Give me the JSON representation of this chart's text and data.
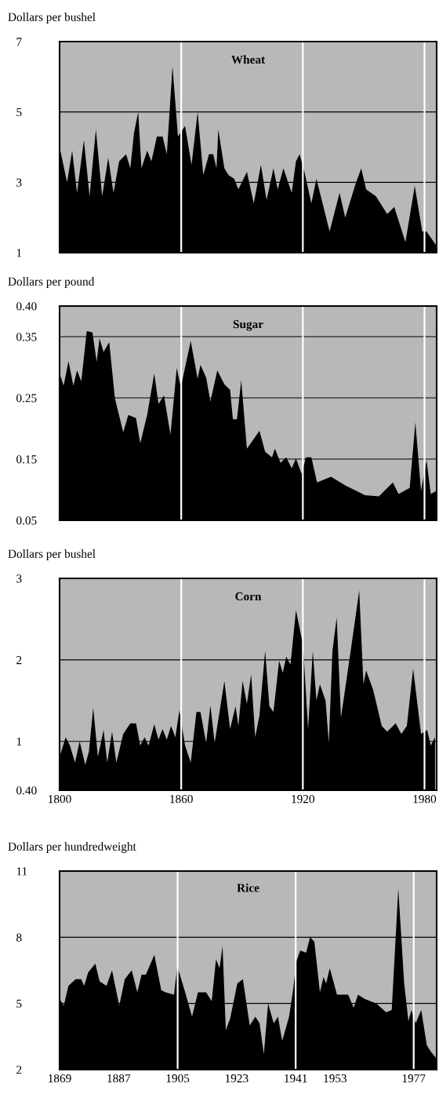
{
  "chart_data": [
    {
      "type": "area",
      "title": "Wheat",
      "ylabel": "Dollars per bushel",
      "xlim": [
        1800,
        1986
      ],
      "xticks": [
        1800,
        1860,
        1920,
        1980
      ],
      "ylim": [
        1,
        7
      ],
      "yticks": [
        1,
        3,
        5,
        7
      ],
      "grid": "y",
      "tick_labels": "y",
      "ref_lines": [
        {
          "axis": "x",
          "value": 1860,
          "color": "#ffffff"
        },
        {
          "axis": "x",
          "value": 1920,
          "color": "#ffffff"
        },
        {
          "axis": "x",
          "value": 1980,
          "color": "#ffffff"
        }
      ],
      "x": [
        1800,
        1803.7,
        1806.2,
        1808.6,
        1812,
        1814.8,
        1817.9,
        1821,
        1824,
        1826.6,
        1829.4,
        1832.8,
        1834.9,
        1836.7,
        1838.8,
        1840.4,
        1843.2,
        1845.3,
        1848,
        1850.8,
        1852.9,
        1855.7,
        1858.4,
        1861.9,
        1865.1,
        1868.1,
        1870.9,
        1873.7,
        1875.8,
        1877.4,
        1878.3,
        1881.3,
        1883.4,
        1886.1,
        1888.2,
        1892.4,
        1895.8,
        1899.3,
        1902.1,
        1905.5,
        1907.6,
        1910.4,
        1914.5,
        1916.6,
        1918.4,
        1920.8,
        1924.2,
        1926.7,
        1933.2,
        1938.1,
        1940.9,
        1945.7,
        1948.8,
        1951.2,
        1956.1,
        1961.6,
        1965.1,
        1970.6,
        1975.2,
        1978.9,
        1981,
        1985.9
      ],
      "series": [
        {
          "color": "#000000",
          "values": [
            4.0,
            3.0,
            3.9,
            2.7,
            4.2,
            2.6,
            4.5,
            2.6,
            3.7,
            2.7,
            3.6,
            3.8,
            3.4,
            4.4,
            5.0,
            3.4,
            3.9,
            3.6,
            4.3,
            4.3,
            3.8,
            6.3,
            4.3,
            4.6,
            3.5,
            5.0,
            3.2,
            3.8,
            3.8,
            3.4,
            4.5,
            3.4,
            3.2,
            3.1,
            2.8,
            3.3,
            2.4,
            3.5,
            2.5,
            3.4,
            2.8,
            3.4,
            2.7,
            3.6,
            3.8,
            3.3,
            2.4,
            3.1,
            1.6,
            2.7,
            2.0,
            2.9,
            3.4,
            2.8,
            2.6,
            2.1,
            2.3,
            1.3,
            2.9,
            1.6,
            1.6,
            1.2
          ]
        }
      ]
    },
    {
      "type": "area",
      "title": "Sugar",
      "ylabel": "Dollars per pound",
      "xlim": [
        1800,
        1986
      ],
      "xticks": [
        1800,
        1860,
        1920,
        1980
      ],
      "ylim": [
        0.05,
        0.4
      ],
      "yticks": [
        0.05,
        0.15,
        0.25,
        0.35,
        {
          "value": 0.4,
          "label": "0.40"
        }
      ],
      "grid": "y",
      "tick_labels": "y",
      "ref_lines": [
        {
          "axis": "x",
          "value": 1860,
          "color": "#ffffff"
        },
        {
          "axis": "x",
          "value": 1920,
          "color": "#ffffff"
        },
        {
          "axis": "x",
          "value": 1980,
          "color": "#ffffff"
        }
      ],
      "x": [
        1800,
        1802,
        1804.4,
        1806.8,
        1808.6,
        1810.7,
        1813.4,
        1816.2,
        1818.3,
        1819.7,
        1821.7,
        1824.5,
        1827.3,
        1831.4,
        1833.9,
        1837.7,
        1839.8,
        1843.2,
        1846.7,
        1848.8,
        1851.5,
        1854.7,
        1857.8,
        1859.8,
        1864.7,
        1868.1,
        1869.5,
        1872.3,
        1874.4,
        1877.8,
        1881.3,
        1884.1,
        1885.5,
        1887.5,
        1889.6,
        1892.4,
        1898.6,
        1901.4,
        1904.8,
        1906.2,
        1909,
        1911.8,
        1914.5,
        1916.6,
        1919.4,
        1921.5,
        1924.2,
        1927,
        1933.9,
        1940.9,
        1950.6,
        1957.5,
        1964.4,
        1967.2,
        1972.7,
        1975.5,
        1978.3,
        1981,
        1983.1,
        1985.9
      ],
      "series": [
        {
          "color": "#000000",
          "values": [
            0.29,
            0.27,
            0.31,
            0.27,
            0.295,
            0.277,
            0.359,
            0.357,
            0.309,
            0.347,
            0.325,
            0.341,
            0.249,
            0.194,
            0.222,
            0.217,
            0.176,
            0.222,
            0.29,
            0.24,
            0.254,
            0.19,
            0.299,
            0.267,
            0.343,
            0.281,
            0.304,
            0.283,
            0.244,
            0.295,
            0.272,
            0.263,
            0.215,
            0.215,
            0.279,
            0.167,
            0.196,
            0.162,
            0.153,
            0.167,
            0.144,
            0.153,
            0.135,
            0.151,
            0.126,
            0.153,
            0.153,
            0.112,
            0.121,
            0.107,
            0.091,
            0.089,
            0.112,
            0.093,
            0.103,
            0.21,
            0.098,
            0.148,
            0.093,
            0.098
          ]
        }
      ]
    },
    {
      "type": "area",
      "title": "Corn",
      "ylabel": "Dollars per bushel",
      "xlim": [
        1800,
        1986
      ],
      "xticks": [
        1800,
        1860,
        1920,
        1980
      ],
      "ylim": [
        0.4,
        3
      ],
      "yticks": [
        {
          "value": 0.4,
          "label": "0.40"
        },
        1,
        2,
        3
      ],
      "grid": "y",
      "ref_lines": [
        {
          "axis": "x",
          "value": 1860,
          "color": "#ffffff"
        },
        {
          "axis": "x",
          "value": 1920,
          "color": "#ffffff"
        },
        {
          "axis": "x",
          "value": 1980,
          "color": "#ffffff"
        }
      ],
      "x": [
        1800,
        1803,
        1805.1,
        1807.6,
        1809.9,
        1812.7,
        1814.5,
        1816.6,
        1818.9,
        1821.7,
        1823.5,
        1825.9,
        1828,
        1831.4,
        1834.9,
        1837.7,
        1839.8,
        1841.9,
        1843.9,
        1846.7,
        1848.8,
        1850.8,
        1852.9,
        1855,
        1857.1,
        1859.1,
        1861.9,
        1864.7,
        1867.5,
        1869.5,
        1872.3,
        1874.4,
        1876.5,
        1881.3,
        1884.1,
        1886.8,
        1888.2,
        1890.3,
        1892.4,
        1894.5,
        1896.5,
        1898.6,
        1901.4,
        1903.5,
        1905.5,
        1908.3,
        1910.1,
        1911.8,
        1913.9,
        1916.6,
        1920.1,
        1922.6,
        1924.9,
        1926.7,
        1928.4,
        1931.2,
        1932.8,
        1934.6,
        1936.7,
        1938.8,
        1943.6,
        1947.8,
        1949.9,
        1951.2,
        1954.7,
        1958.9,
        1961.6,
        1965.8,
        1968.6,
        1971.3,
        1974.4,
        1978.3,
        1981.3,
        1983.1,
        1985.2
      ],
      "series": [
        {
          "color": "#000000",
          "values": [
            0.81,
            1.05,
            0.95,
            0.74,
            1.0,
            0.71,
            0.88,
            1.41,
            0.81,
            1.14,
            0.74,
            1.12,
            0.74,
            1.09,
            1.22,
            1.22,
            0.95,
            1.05,
            0.95,
            1.21,
            1.02,
            1.15,
            1.02,
            1.19,
            1.05,
            1.38,
            0.95,
            0.74,
            1.36,
            1.36,
            0.98,
            1.44,
            0.98,
            1.74,
            1.15,
            1.43,
            1.19,
            1.74,
            1.46,
            1.82,
            1.05,
            1.32,
            2.11,
            1.43,
            1.36,
            1.99,
            1.84,
            2.04,
            1.94,
            2.61,
            2.18,
            1.15,
            2.11,
            1.5,
            1.7,
            1.5,
            0.98,
            2.11,
            2.52,
            1.29,
            2.11,
            2.85,
            1.7,
            1.87,
            1.63,
            1.19,
            1.12,
            1.22,
            1.09,
            1.19,
            1.89,
            1.09,
            1.14,
            0.95,
            1.05
          ]
        }
      ]
    },
    {
      "type": "area",
      "title": "Rice",
      "ylabel": "Dollars per hundredweight",
      "xlim": [
        1869,
        1984
      ],
      "xticks": [
        1869,
        1887,
        1905,
        1923,
        1941,
        1953,
        1977
      ],
      "ylim": [
        2,
        11
      ],
      "yticks": [
        2,
        5,
        8,
        11
      ],
      "grid": "y",
      "ref_lines": [
        {
          "axis": "x",
          "value": 1905,
          "color": "#ffffff"
        },
        {
          "axis": "x",
          "value": 1941,
          "color": "#ffffff"
        },
        {
          "axis": "x",
          "value": 1977,
          "color": "#ffffff"
        }
      ],
      "x": [
        1869,
        1870.3,
        1871.7,
        1873.9,
        1875.6,
        1876.5,
        1877.7,
        1879.9,
        1881.2,
        1883.3,
        1885,
        1887.2,
        1888.9,
        1891,
        1892.7,
        1894,
        1895.3,
        1897.9,
        1900,
        1901.3,
        1903.9,
        1904.9,
        1907.3,
        1909.4,
        1911.2,
        1913.7,
        1915.4,
        1916.7,
        1917.8,
        1918.7,
        1919.7,
        1921,
        1923.2,
        1924.9,
        1927,
        1928.7,
        1930,
        1931.3,
        1932.6,
        1934.3,
        1935.6,
        1936.9,
        1939,
        1940.3,
        1941.2,
        1942.4,
        1944.2,
        1945.4,
        1946.7,
        1948.4,
        1949.5,
        1950.3,
        1951.4,
        1953.6,
        1954.9,
        1957,
        1958.7,
        1960,
        1962.1,
        1965.6,
        1968.6,
        1970.3,
        1972.3,
        1974.1,
        1975.4,
        1976.3,
        1977.6,
        1979.3,
        1981,
        1982.3,
        1984
      ],
      "series": [
        {
          "color": "#000000",
          "values": [
            5.2,
            4.9,
            5.8,
            6.1,
            6.1,
            5.8,
            6.4,
            6.8,
            6.0,
            5.8,
            6.5,
            4.9,
            6.1,
            6.5,
            5.5,
            6.3,
            6.3,
            7.2,
            5.6,
            5.5,
            5.4,
            6.7,
            5.5,
            4.4,
            5.5,
            5.5,
            5.1,
            7.0,
            6.6,
            7.6,
            3.8,
            4.3,
            5.9,
            6.1,
            4.0,
            4.4,
            4.1,
            2.7,
            5.0,
            4.1,
            4.4,
            3.3,
            4.4,
            5.7,
            6.9,
            7.4,
            7.3,
            8.0,
            7.8,
            5.5,
            6.2,
            5.9,
            6.6,
            5.4,
            5.4,
            5.4,
            4.8,
            5.4,
            5.2,
            5.0,
            4.6,
            4.7,
            10.2,
            5.9,
            4.2,
            4.7,
            4.1,
            4.7,
            3.1,
            2.8,
            2.5
          ]
        }
      ]
    }
  ]
}
